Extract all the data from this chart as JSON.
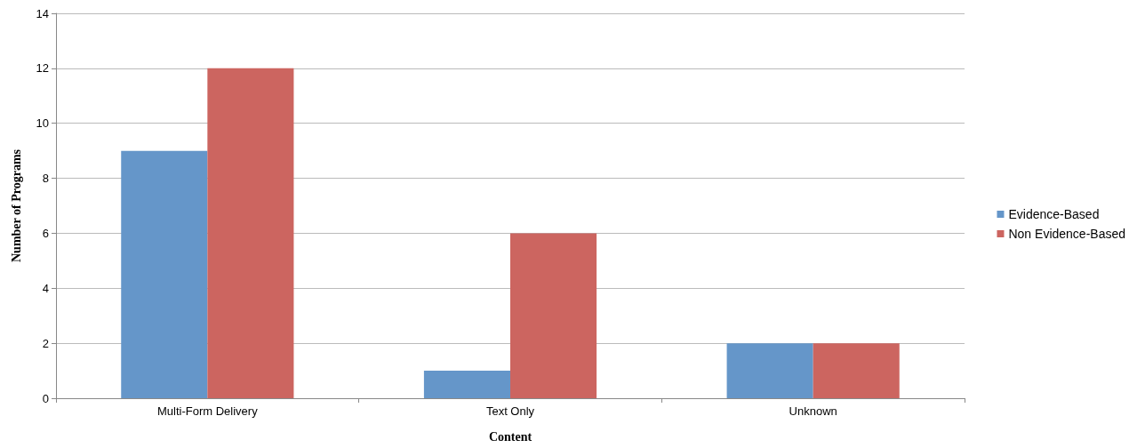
{
  "chart_data": {
    "type": "bar",
    "xlabel": "Content",
    "ylabel": "Number of Programs",
    "categories": [
      "Multi-Form Delivery",
      "Text Only",
      "Unknown"
    ],
    "series": [
      {
        "name": "Evidence-Based",
        "color": "#6596c9",
        "values": [
          9,
          1,
          2
        ]
      },
      {
        "name": "Non Evidence-Based",
        "color": "#cc6560",
        "values": [
          12,
          6,
          2
        ]
      }
    ],
    "ylim": [
      0,
      14
    ],
    "yticks": [
      0,
      2,
      4,
      6,
      8,
      10,
      12,
      14
    ],
    "grid": "y",
    "legend": "right"
  }
}
